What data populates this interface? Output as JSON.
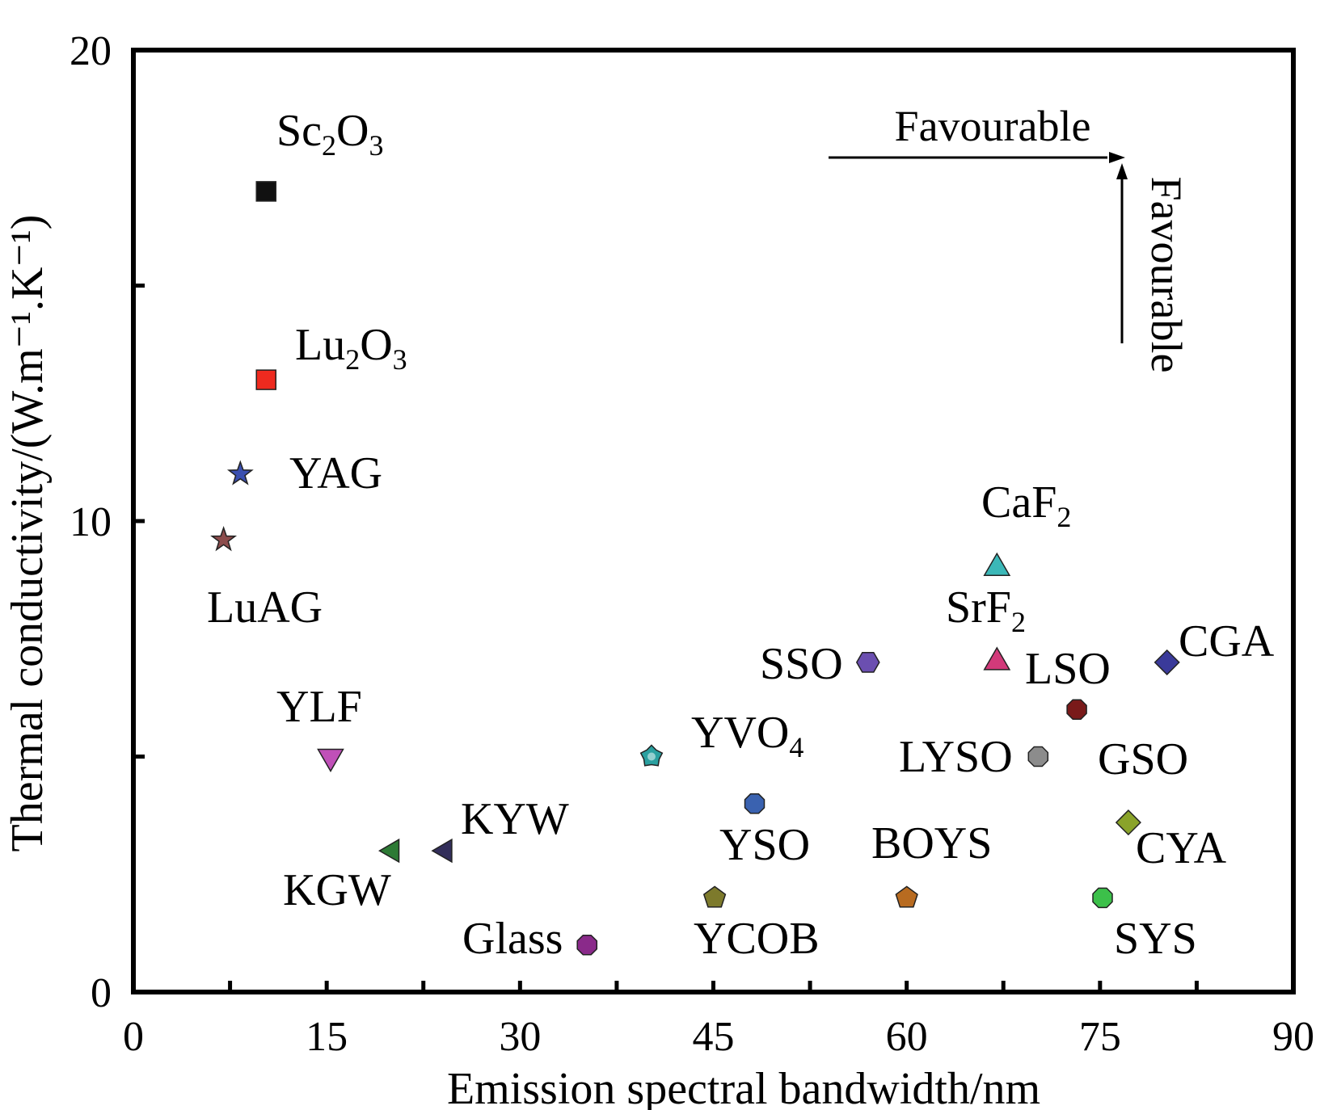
{
  "chart_data": {
    "type": "scatter",
    "title": "",
    "xlabel": "Emission spectral bandwidth/nm",
    "ylabel": "Thermal conductivity/(W.m⁻¹.K⁻¹)",
    "xlim": [
      0,
      90
    ],
    "ylim": [
      0,
      20
    ],
    "xticks": [
      0,
      15,
      30,
      45,
      60,
      75,
      90
    ],
    "yticks": [
      0,
      10,
      20
    ],
    "grid": false,
    "annotations": [
      {
        "text": "Favourable",
        "direction": "right"
      },
      {
        "text": "Favourable",
        "direction": "up"
      }
    ],
    "points": [
      {
        "label": "Sc₂O₃",
        "x": 10.3,
        "y": 17.0,
        "color": "#111111",
        "marker": "square"
      },
      {
        "label": "Lu₂O₃",
        "x": 10.3,
        "y": 13.0,
        "color": "#ee2a1f",
        "marker": "square"
      },
      {
        "label": "YAG",
        "x": 8.3,
        "y": 11.0,
        "color": "#3a4fb0",
        "marker": "star"
      },
      {
        "label": "LuAG",
        "x": 7.0,
        "y": 9.6,
        "color": "#8c4c4c",
        "marker": "star"
      },
      {
        "label": "YLF",
        "x": 15.3,
        "y": 5.0,
        "color": "#c050b8",
        "marker": "triangle-down"
      },
      {
        "label": "KGW",
        "x": 20.1,
        "y": 3.0,
        "color": "#2d7a35",
        "marker": "triangle-left"
      },
      {
        "label": "KYW",
        "x": 24.2,
        "y": 3.0,
        "color": "#322e5a",
        "marker": "triangle-left"
      },
      {
        "label": "Glass",
        "x": 35.2,
        "y": 1.0,
        "color": "#8a2a8a",
        "marker": "octagon"
      },
      {
        "label": "YVO₄",
        "x": 40.2,
        "y": 5.0,
        "color": "#2aa0a0",
        "marker": "gear"
      },
      {
        "label": "YCOB",
        "x": 45.1,
        "y": 2.0,
        "color": "#7d7a2c",
        "marker": "pentagon"
      },
      {
        "label": "YSO",
        "x": 48.2,
        "y": 4.0,
        "color": "#3a62b0",
        "marker": "octagon"
      },
      {
        "label": "SSO",
        "x": 57.0,
        "y": 7.0,
        "color": "#6b4fb0",
        "marker": "hexagon"
      },
      {
        "label": "BOYS",
        "x": 60.0,
        "y": 2.0,
        "color": "#b86b20",
        "marker": "pentagon"
      },
      {
        "label": "CaF₂",
        "x": 67.0,
        "y": 9.0,
        "color": "#3bb8b8",
        "marker": "triangle-up"
      },
      {
        "label": "SrF₂",
        "x": 67.0,
        "y": 7.0,
        "color": "#d23a7a",
        "marker": "triangle-up"
      },
      {
        "label": "LYSO",
        "x": 70.2,
        "y": 5.0,
        "color": "#8c8c8c",
        "marker": "octagon"
      },
      {
        "label": "LSO",
        "x": 73.2,
        "y": 6.0,
        "color": "#7a1a1a",
        "marker": "octagon"
      },
      {
        "label": "SYS",
        "x": 75.2,
        "y": 2.0,
        "color": "#3cc04a",
        "marker": "octagon"
      },
      {
        "label": "CYA",
        "x": 77.2,
        "y": 3.6,
        "color": "#8aa32a",
        "marker": "diamond"
      },
      {
        "label": "CGA",
        "x": 80.2,
        "y": 7.0,
        "color": "#3a3a9a",
        "marker": "diamond"
      },
      {
        "label": "GSO",
        "x": null,
        "y": null,
        "color": "",
        "marker": "none"
      }
    ]
  }
}
